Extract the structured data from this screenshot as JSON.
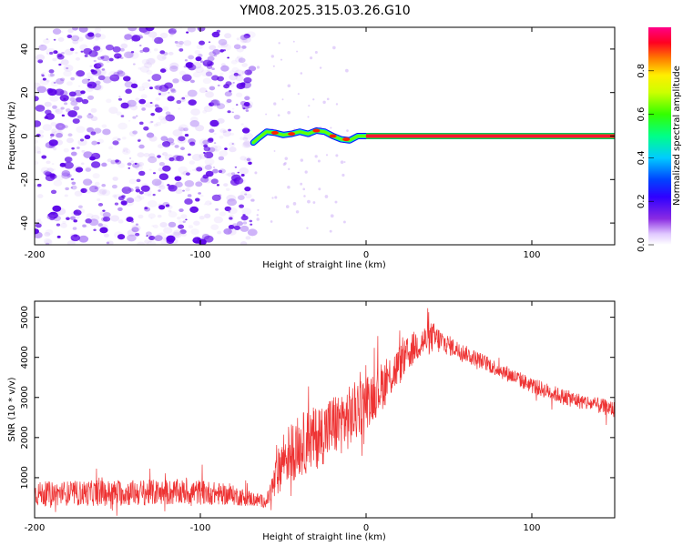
{
  "figure": {
    "title": "YM08.2025.315.03.26.G10"
  },
  "chart_data": [
    {
      "type": "heatmap",
      "xlabel": "Height of straight line (km)",
      "ylabel": "Frequency (Hz)",
      "xlim": [
        -200,
        150
      ],
      "ylim": [
        -50,
        50
      ],
      "x_ticks": [
        -200,
        -100,
        0,
        100
      ],
      "y_ticks": [
        -40,
        -20,
        0,
        20,
        40
      ],
      "colorbar": {
        "label": "Normalized spectral amplitude",
        "range": [
          0.0,
          1.0
        ],
        "ticks": [
          0.0,
          0.2,
          0.4,
          0.6,
          0.8
        ],
        "colormap": "rainbow (purple-blue-cyan-green-yellow-red-magenta)"
      },
      "features": {
        "diffuse_scatter": {
          "x_range": [
            -200,
            -68
          ],
          "f_range": [
            -50,
            50
          ],
          "peak_amplitude": 0.25,
          "color": "#6a10e8"
        },
        "signal_ridge": {
          "x": [
            -68,
            -65,
            -60,
            -55,
            -50,
            -45,
            -40,
            -35,
            -30,
            -25,
            -20,
            -15,
            -10,
            -5,
            0,
            50,
            100,
            150
          ],
          "f": [
            -3,
            -1,
            2,
            1.5,
            0.5,
            1,
            2,
            1,
            2.5,
            2,
            0,
            -1.5,
            -2,
            0,
            0,
            0,
            0,
            0
          ]
        }
      },
      "grid": false
    },
    {
      "type": "line",
      "xlabel": "Height of straight line (km)",
      "ylabel": "SNR (10 * v/v)",
      "xlim": [
        -200,
        150
      ],
      "ylim": [
        0,
        5400
      ],
      "x_ticks": [
        -200,
        -100,
        0,
        100
      ],
      "y_ticks": [
        1000,
        2000,
        3000,
        4000,
        5000
      ],
      "series": [
        {
          "color": "#ee3333",
          "envelope_x": [
            -200,
            -150,
            -100,
            -80,
            -60,
            -55,
            -50,
            -40,
            -30,
            -20,
            -10,
            0,
            10,
            20,
            30,
            40,
            50,
            60,
            80,
            100,
            120,
            150
          ],
          "envelope_mean": [
            600,
            620,
            640,
            560,
            400,
            900,
            1500,
            1800,
            2000,
            2300,
            2500,
            2900,
            3300,
            3800,
            4300,
            4500,
            4300,
            4100,
            3700,
            3300,
            3000,
            2700
          ],
          "envelope_amp": [
            300,
            330,
            320,
            250,
            150,
            500,
            700,
            800,
            800,
            800,
            800,
            700,
            600,
            500,
            400,
            400,
            250,
            200,
            200,
            200,
            200,
            200
          ]
        }
      ],
      "grid": false
    }
  ]
}
